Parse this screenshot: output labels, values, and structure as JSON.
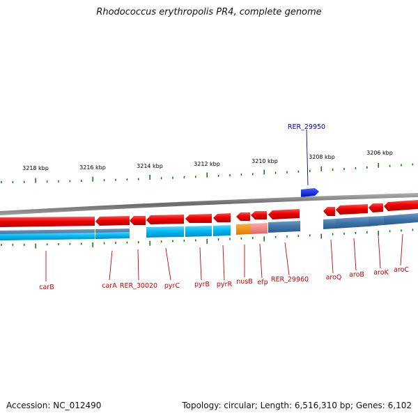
{
  "title": "Rhodococcus erythropolis PR4, complete genome",
  "footer": {
    "accession": "Accession: NC_012490",
    "topology": "Topology: circular;",
    "length": "Length: 6,516,310 bp;",
    "genes": "Genes: 6,102"
  },
  "scale": {
    "labels": [
      "3218 kbp",
      "3216 kbp",
      "3214 kbp",
      "3212 kbp",
      "3210 kbp",
      "3208 kbp",
      "3206 kbp"
    ]
  },
  "colors": {
    "forward_gene": "#ee0000",
    "reverse_gene": "#1040e0",
    "cds_cyan": "#00b4ee",
    "cds_steel": "#3f74a8",
    "cds_orange": "#f08a00",
    "cds_pink": "#f08080",
    "backbone": "#808080",
    "tick": "#007700",
    "label_red": "#cc0000",
    "label_blue": "#000099"
  },
  "genes": {
    "reverse_strand_labels": [
      "RER_29950"
    ],
    "forward_strand_labels": [
      "carB",
      "carA",
      "RER_30020",
      "pyrC",
      "pyrB",
      "pyrR",
      "nusB",
      "efp",
      "RER_29960",
      "aroQ",
      "aroB",
      "aroK",
      "aroC"
    ]
  }
}
